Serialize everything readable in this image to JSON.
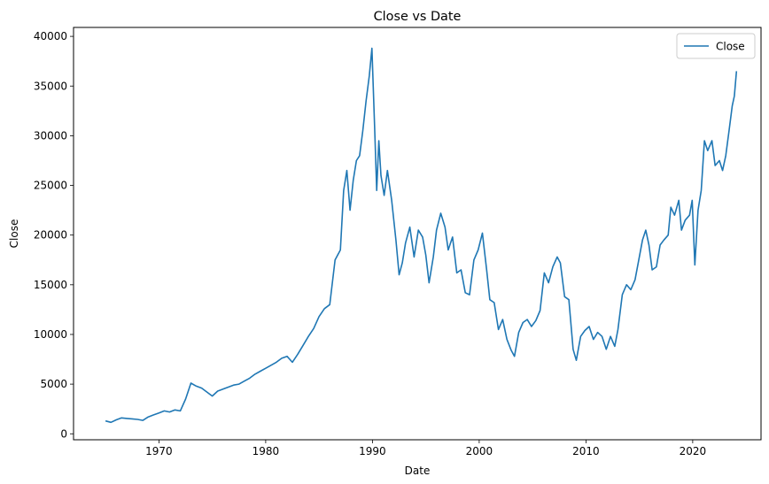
{
  "chart_data": {
    "type": "line",
    "title": "Close vs Date",
    "xlabel": "Date",
    "ylabel": "Close",
    "xlim": [
      1962.0,
      2026.4
    ],
    "ylim": [
      -600,
      40900
    ],
    "x_ticks": [
      1970,
      1980,
      1990,
      2000,
      2010,
      2020
    ],
    "y_ticks": [
      0,
      5000,
      10000,
      15000,
      20000,
      25000,
      30000,
      35000,
      40000
    ],
    "grid": false,
    "legend": {
      "placement": "upper-right",
      "entries": [
        "Close"
      ]
    },
    "series": [
      {
        "name": "Close",
        "color": "#1f77b4",
        "points": [
          [
            1965.0,
            1300
          ],
          [
            1965.5,
            1150
          ],
          [
            1966.0,
            1400
          ],
          [
            1966.5,
            1600
          ],
          [
            1967.0,
            1550
          ],
          [
            1967.5,
            1500
          ],
          [
            1968.0,
            1450
          ],
          [
            1968.5,
            1350
          ],
          [
            1969.0,
            1700
          ],
          [
            1969.5,
            1900
          ],
          [
            1970.0,
            2100
          ],
          [
            1970.5,
            2300
          ],
          [
            1971.0,
            2200
          ],
          [
            1971.5,
            2400
          ],
          [
            1972.0,
            2300
          ],
          [
            1972.5,
            3500
          ],
          [
            1973.0,
            5100
          ],
          [
            1973.5,
            4800
          ],
          [
            1974.0,
            4600
          ],
          [
            1974.5,
            4200
          ],
          [
            1975.0,
            3800
          ],
          [
            1975.5,
            4300
          ],
          [
            1976.0,
            4500
          ],
          [
            1976.5,
            4700
          ],
          [
            1977.0,
            4900
          ],
          [
            1977.5,
            5000
          ],
          [
            1978.0,
            5300
          ],
          [
            1978.5,
            5600
          ],
          [
            1979.0,
            6000
          ],
          [
            1979.5,
            6300
          ],
          [
            1980.0,
            6600
          ],
          [
            1980.5,
            6900
          ],
          [
            1981.0,
            7200
          ],
          [
            1981.5,
            7600
          ],
          [
            1982.0,
            7800
          ],
          [
            1982.5,
            7200
          ],
          [
            1983.0,
            8000
          ],
          [
            1983.5,
            8900
          ],
          [
            1984.0,
            9800
          ],
          [
            1984.5,
            10600
          ],
          [
            1985.0,
            11800
          ],
          [
            1985.5,
            12600
          ],
          [
            1986.0,
            13000
          ],
          [
            1986.5,
            17500
          ],
          [
            1987.0,
            18500
          ],
          [
            1987.3,
            24500
          ],
          [
            1987.6,
            26500
          ],
          [
            1987.9,
            22500
          ],
          [
            1988.2,
            25500
          ],
          [
            1988.5,
            27500
          ],
          [
            1988.8,
            28000
          ],
          [
            1989.1,
            30500
          ],
          [
            1989.4,
            33500
          ],
          [
            1989.7,
            36000
          ],
          [
            1989.95,
            38800
          ],
          [
            1990.2,
            31000
          ],
          [
            1990.4,
            24500
          ],
          [
            1990.6,
            29500
          ],
          [
            1990.8,
            26000
          ],
          [
            1991.1,
            24000
          ],
          [
            1991.4,
            26500
          ],
          [
            1991.8,
            23500
          ],
          [
            1992.2,
            19500
          ],
          [
            1992.5,
            16000
          ],
          [
            1992.8,
            17200
          ],
          [
            1993.1,
            19200
          ],
          [
            1993.5,
            20800
          ],
          [
            1993.9,
            17800
          ],
          [
            1994.3,
            20500
          ],
          [
            1994.7,
            19800
          ],
          [
            1995.0,
            18000
          ],
          [
            1995.3,
            15200
          ],
          [
            1995.7,
            17800
          ],
          [
            1996.0,
            20500
          ],
          [
            1996.4,
            22200
          ],
          [
            1996.8,
            20800
          ],
          [
            1997.1,
            18500
          ],
          [
            1997.5,
            19800
          ],
          [
            1997.9,
            16200
          ],
          [
            1998.3,
            16500
          ],
          [
            1998.7,
            14200
          ],
          [
            1999.1,
            14000
          ],
          [
            1999.5,
            17500
          ],
          [
            1999.9,
            18500
          ],
          [
            2000.3,
            20200
          ],
          [
            2000.7,
            16500
          ],
          [
            2001.0,
            13500
          ],
          [
            2001.4,
            13200
          ],
          [
            2001.8,
            10500
          ],
          [
            2002.2,
            11500
          ],
          [
            2002.6,
            9500
          ],
          [
            2003.0,
            8400
          ],
          [
            2003.3,
            7800
          ],
          [
            2003.7,
            10200
          ],
          [
            2004.1,
            11200
          ],
          [
            2004.5,
            11500
          ],
          [
            2004.9,
            10800
          ],
          [
            2005.3,
            11400
          ],
          [
            2005.7,
            12400
          ],
          [
            2006.1,
            16200
          ],
          [
            2006.5,
            15200
          ],
          [
            2006.9,
            16800
          ],
          [
            2007.3,
            17800
          ],
          [
            2007.6,
            17200
          ],
          [
            2008.0,
            13800
          ],
          [
            2008.4,
            13500
          ],
          [
            2008.8,
            8500
          ],
          [
            2009.1,
            7400
          ],
          [
            2009.5,
            9800
          ],
          [
            2009.9,
            10400
          ],
          [
            2010.3,
            10800
          ],
          [
            2010.7,
            9500
          ],
          [
            2011.1,
            10200
          ],
          [
            2011.5,
            9800
          ],
          [
            2011.9,
            8500
          ],
          [
            2012.3,
            9800
          ],
          [
            2012.7,
            8800
          ],
          [
            2013.0,
            10500
          ],
          [
            2013.4,
            14000
          ],
          [
            2013.8,
            15000
          ],
          [
            2014.2,
            14500
          ],
          [
            2014.6,
            15500
          ],
          [
            2014.95,
            17500
          ],
          [
            2015.3,
            19500
          ],
          [
            2015.6,
            20500
          ],
          [
            2015.9,
            19000
          ],
          [
            2016.2,
            16500
          ],
          [
            2016.6,
            16800
          ],
          [
            2016.95,
            19000
          ],
          [
            2017.3,
            19500
          ],
          [
            2017.7,
            20000
          ],
          [
            2017.95,
            22800
          ],
          [
            2018.3,
            22000
          ],
          [
            2018.7,
            23500
          ],
          [
            2018.95,
            20500
          ],
          [
            2019.3,
            21500
          ],
          [
            2019.7,
            22000
          ],
          [
            2019.95,
            23500
          ],
          [
            2020.2,
            17000
          ],
          [
            2020.5,
            22500
          ],
          [
            2020.8,
            24500
          ],
          [
            2021.1,
            29500
          ],
          [
            2021.4,
            28500
          ],
          [
            2021.8,
            29500
          ],
          [
            2022.1,
            27000
          ],
          [
            2022.5,
            27500
          ],
          [
            2022.8,
            26500
          ],
          [
            2023.1,
            28000
          ],
          [
            2023.4,
            30500
          ],
          [
            2023.7,
            33000
          ],
          [
            2023.9,
            34000
          ],
          [
            2024.1,
            36500
          ]
        ]
      }
    ]
  }
}
